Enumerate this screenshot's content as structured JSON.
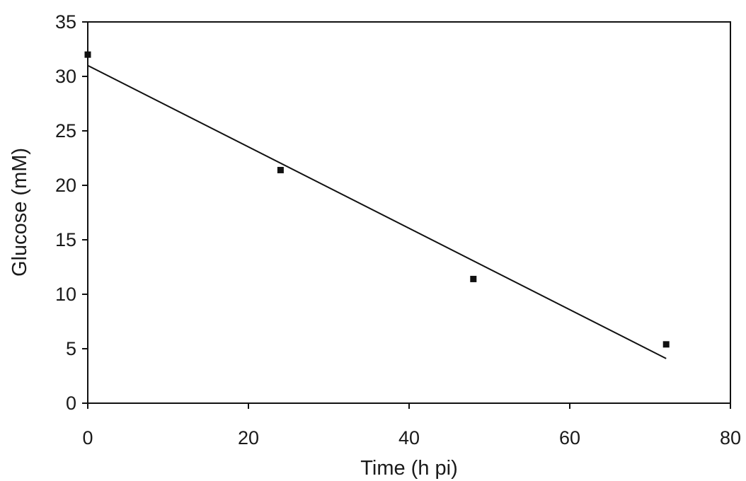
{
  "chart_data": {
    "type": "scatter",
    "title": "",
    "xlabel": "Time (h pi)",
    "ylabel": "Glucose (mM)",
    "xlim": [
      0,
      80
    ],
    "ylim": [
      0,
      35
    ],
    "xticks": [
      "0",
      "20",
      "40",
      "60",
      "80"
    ],
    "yticks": [
      "0",
      "5",
      "10",
      "15",
      "20",
      "25",
      "30",
      "35"
    ],
    "grid": false,
    "legend": "none",
    "series": [
      {
        "marker": "square",
        "x": [
          0,
          24,
          48,
          72
        ],
        "y": [
          32.0,
          21.4,
          11.4,
          5.4
        ]
      }
    ],
    "trendline": {
      "x": [
        0,
        72
      ],
      "y": [
        31.0,
        4.1
      ]
    },
    "colors": {
      "ink": "#111111",
      "background": "#ffffff"
    }
  }
}
